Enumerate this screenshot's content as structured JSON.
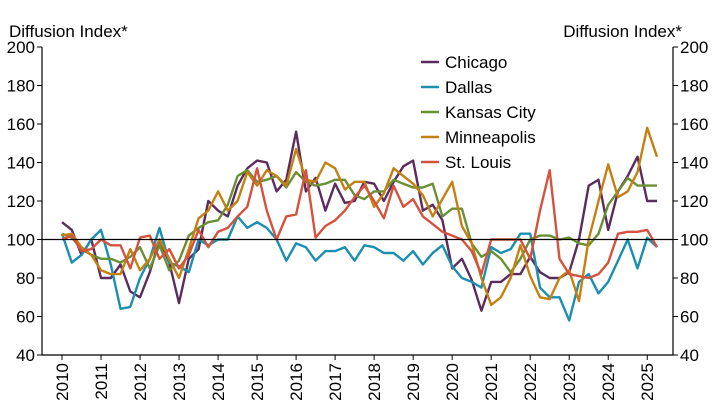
{
  "chart_data": {
    "type": "line",
    "ylabel_left": "Diffusion Index*",
    "ylabel_right": "Diffusion Index*",
    "ylim": [
      40,
      200
    ],
    "yticks": [
      40,
      60,
      80,
      100,
      120,
      140,
      160,
      180,
      200
    ],
    "xlim": [
      2010,
      2025.6
    ],
    "xticks": [
      "2010",
      "2011",
      "2012",
      "2013",
      "2014",
      "2015",
      "2016",
      "2017",
      "2018",
      "2019",
      "2020",
      "2021",
      "2022",
      "2023",
      "2024",
      "2025"
    ],
    "reference_line": 100,
    "grid": false,
    "legend_position": "top-center",
    "series": [
      {
        "name": "Chicago",
        "color": "#5b2c5e",
        "x": [
          2010,
          2010.25,
          2010.5,
          2010.75,
          2011,
          2011.25,
          2011.5,
          2011.75,
          2012,
          2012.25,
          2012.5,
          2012.75,
          2013,
          2013.25,
          2013.5,
          2013.75,
          2014,
          2014.25,
          2014.5,
          2014.75,
          2015,
          2015.25,
          2015.5,
          2015.75,
          2016,
          2016.25,
          2016.5,
          2016.75,
          2017,
          2017.25,
          2017.5,
          2017.75,
          2018,
          2018.25,
          2018.5,
          2018.75,
          2019,
          2019.25,
          2019.5,
          2019.75,
          2020,
          2020.25,
          2020.5,
          2020.75,
          2021,
          2021.25,
          2021.5,
          2021.75,
          2022,
          2022.25,
          2022.5,
          2022.75,
          2023,
          2023.25,
          2023.5,
          2023.75,
          2024,
          2024.25,
          2024.5,
          2024.75,
          2025,
          2025.25
        ],
        "values": [
          109,
          105,
          92,
          100,
          80,
          80,
          87,
          73,
          70,
          83,
          100,
          88,
          67,
          90,
          95,
          120,
          115,
          112,
          128,
          137,
          141,
          140,
          125,
          131,
          156,
          125,
          132,
          115,
          129,
          119,
          120,
          130,
          129,
          120,
          130,
          138,
          141,
          115,
          118,
          110,
          85,
          90,
          79,
          63,
          78,
          78,
          82,
          82,
          91,
          83,
          80,
          80,
          83,
          100,
          128,
          131,
          105,
          125,
          133,
          143,
          120,
          120
        ]
      },
      {
        "name": "Dallas",
        "color": "#1b8fb0",
        "x": [
          2010,
          2010.25,
          2010.5,
          2010.75,
          2011,
          2011.25,
          2011.5,
          2011.75,
          2012,
          2012.25,
          2012.5,
          2012.75,
          2013,
          2013.25,
          2013.5,
          2013.75,
          2014,
          2014.25,
          2014.5,
          2014.75,
          2015,
          2015.25,
          2015.5,
          2015.75,
          2016,
          2016.25,
          2016.5,
          2016.75,
          2017,
          2017.25,
          2017.5,
          2017.75,
          2018,
          2018.25,
          2018.5,
          2018.75,
          2019,
          2019.25,
          2019.5,
          2019.75,
          2020,
          2020.25,
          2020.5,
          2020.75,
          2021,
          2021.25,
          2021.5,
          2021.75,
          2022,
          2022.25,
          2022.5,
          2022.75,
          2023,
          2023.25,
          2023.5,
          2023.75,
          2024,
          2024.25,
          2024.5,
          2024.75,
          2025,
          2025.25
        ],
        "values": [
          103,
          88,
          92,
          100,
          105,
          87,
          64,
          65,
          80,
          90,
          106,
          88,
          86,
          83,
          100,
          97,
          100,
          100,
          112,
          106,
          109,
          106,
          100,
          89,
          98,
          96,
          89,
          94,
          94,
          96,
          89,
          97,
          96,
          93,
          93,
          89,
          94,
          87,
          93,
          97,
          86,
          80,
          78,
          75,
          96,
          93,
          95,
          103,
          103,
          75,
          70,
          70,
          58,
          78,
          82,
          72,
          78,
          89,
          100,
          85,
          101,
          96
        ]
      },
      {
        "name": "Kansas City",
        "color": "#6b8f35",
        "x": [
          2010,
          2010.25,
          2010.5,
          2010.75,
          2011,
          2011.25,
          2011.5,
          2011.75,
          2012,
          2012.25,
          2012.5,
          2012.75,
          2013,
          2013.25,
          2013.5,
          2013.75,
          2014,
          2014.25,
          2014.5,
          2014.75,
          2015,
          2015.25,
          2015.5,
          2015.75,
          2016,
          2016.25,
          2016.5,
          2016.75,
          2017,
          2017.25,
          2017.5,
          2017.75,
          2018,
          2018.25,
          2018.5,
          2018.75,
          2019,
          2019.25,
          2019.5,
          2019.75,
          2020,
          2020.25,
          2020.5,
          2020.75,
          2021,
          2021.25,
          2021.5,
          2021.75,
          2022,
          2022.25,
          2022.5,
          2022.75,
          2023,
          2023.25,
          2023.5,
          2023.75,
          2024,
          2024.25,
          2024.5,
          2024.75,
          2025,
          2025.25
        ],
        "values": [
          103,
          101,
          95,
          92,
          90,
          90,
          88,
          91,
          96,
          85,
          97,
          84,
          89,
          102,
          106,
          109,
          110,
          118,
          133,
          136,
          130,
          131,
          133,
          127,
          135,
          130,
          128,
          129,
          131,
          131,
          123,
          121,
          125,
          125,
          131,
          129,
          127,
          127,
          129,
          112,
          116,
          116,
          98,
          91,
          94,
          90,
          83,
          90,
          100,
          102,
          102,
          100,
          101,
          98,
          97,
          103,
          118,
          125,
          132,
          128,
          128,
          128
        ]
      },
      {
        "name": "Minneapolis",
        "color": "#c58013",
        "x": [
          2010,
          2010.25,
          2010.5,
          2010.75,
          2011,
          2011.25,
          2011.5,
          2011.75,
          2012,
          2012.25,
          2012.5,
          2012.75,
          2013,
          2013.25,
          2013.5,
          2013.75,
          2014,
          2014.25,
          2014.5,
          2014.75,
          2015,
          2015.25,
          2015.5,
          2015.75,
          2016,
          2016.25,
          2016.5,
          2016.75,
          2017,
          2017.25,
          2017.5,
          2017.75,
          2018,
          2018.25,
          2018.5,
          2018.75,
          2019,
          2019.25,
          2019.5,
          2019.75,
          2020,
          2020.25,
          2020.5,
          2020.75,
          2021,
          2021.25,
          2021.5,
          2021.75,
          2022,
          2022.25,
          2022.5,
          2022.75,
          2023,
          2023.25,
          2023.5,
          2023.75,
          2024,
          2024.25,
          2024.5,
          2024.75,
          2025,
          2025.25
        ],
        "values": [
          102,
          103,
          96,
          92,
          84,
          82,
          82,
          95,
          84,
          90,
          100,
          90,
          80,
          95,
          111,
          115,
          125,
          115,
          120,
          135,
          128,
          136,
          133,
          128,
          147,
          131,
          130,
          140,
          137,
          126,
          130,
          130,
          117,
          124,
          137,
          133,
          129,
          123,
          112,
          121,
          130,
          107,
          98,
          80,
          66,
          70,
          80,
          97,
          81,
          70,
          69,
          80,
          84,
          68,
          100,
          120,
          139,
          122,
          125,
          135,
          158,
          143
        ]
      },
      {
        "name": "St. Louis",
        "color": "#d5533e",
        "x": [
          2010,
          2010.25,
          2010.5,
          2010.75,
          2011,
          2011.25,
          2011.5,
          2011.75,
          2012,
          2012.25,
          2012.5,
          2012.75,
          2013,
          2013.25,
          2013.5,
          2013.75,
          2014,
          2014.25,
          2014.5,
          2014.75,
          2015,
          2015.25,
          2015.5,
          2015.75,
          2016,
          2016.25,
          2016.5,
          2016.75,
          2017,
          2017.25,
          2017.5,
          2017.75,
          2018,
          2018.25,
          2018.5,
          2018.75,
          2019,
          2019.25,
          2019.5,
          2019.75,
          2020,
          2020.25,
          2020.5,
          2020.75,
          2021,
          2021.25,
          2021.5,
          2021.75,
          2022,
          2022.25,
          2022.5,
          2022.75,
          2023,
          2023.25,
          2023.5,
          2023.75,
          2024,
          2024.25,
          2024.5,
          2024.75,
          2025,
          2025.25
        ],
        "values": [
          100,
          102,
          94,
          95,
          100,
          97,
          97,
          85,
          101,
          102,
          90,
          95,
          85,
          92,
          105,
          96,
          104,
          106,
          112,
          117,
          137,
          115,
          100,
          112,
          113,
          136,
          101,
          107,
          110,
          115,
          122,
          128,
          120,
          111,
          128,
          117,
          121,
          112,
          108,
          104,
          102,
          100,
          94,
          82,
          100,
          100,
          100,
          100,
          90,
          115,
          136,
          90,
          82,
          81,
          80,
          82,
          88,
          103,
          104,
          104,
          105,
          96
        ]
      }
    ]
  }
}
